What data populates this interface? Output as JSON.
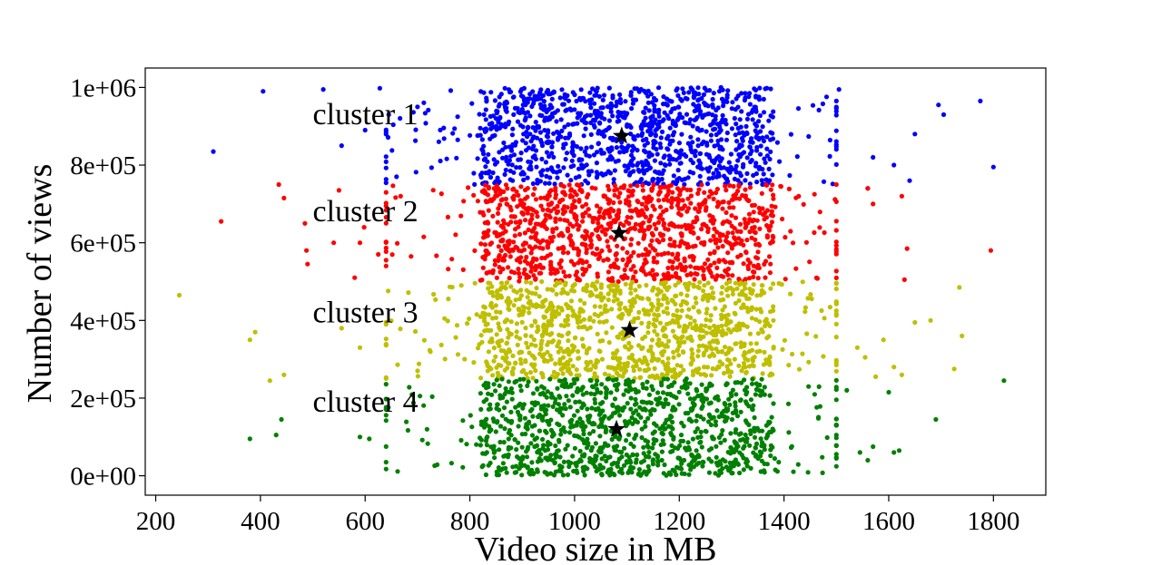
{
  "chart_data": {
    "type": "scatter",
    "title": "",
    "xlabel": "Video size in MB",
    "ylabel": "Number of views",
    "xlim": [
      180,
      1900
    ],
    "ylim": [
      -50000,
      1050000
    ],
    "x_ticks": [
      200,
      400,
      600,
      800,
      1000,
      1200,
      1400,
      1600,
      1800
    ],
    "x_tick_labels": [
      "200",
      "400",
      "600",
      "800",
      "1000",
      "1200",
      "1400",
      "1600",
      "1800"
    ],
    "y_ticks": [
      0,
      200000,
      400000,
      600000,
      800000,
      1000000
    ],
    "y_tick_labels": [
      "0e+00",
      "2e+05",
      "4e+05",
      "6e+05",
      "8e+05",
      "1e+06"
    ],
    "grid": false,
    "legend": "none",
    "colors": {
      "cluster 1": "#0000ff",
      "cluster 2": "#ff0000",
      "cluster 3": "#bfbf00",
      "cluster 4": "#008000",
      "centroid": "#000000"
    },
    "series": [
      {
        "name": "cluster 1",
        "y_range": [
          750000,
          1000000
        ],
        "x_core_range": [
          820,
          1380
        ],
        "approx_point_count": 1100,
        "centroid": [
          1090,
          875000
        ],
        "sample_points": [
          [
            405,
            990000
          ],
          [
            520,
            995000
          ],
          [
            628,
            998000
          ],
          [
            310,
            835000
          ],
          [
            555,
            850000
          ],
          [
            600,
            890000
          ],
          [
            645,
            930000
          ],
          [
            660,
            770000
          ],
          [
            700,
            950000
          ],
          [
            1505,
            995000
          ],
          [
            1570,
            820000
          ],
          [
            1610,
            800000
          ],
          [
            1650,
            880000
          ],
          [
            1695,
            955000
          ],
          [
            1705,
            930000
          ],
          [
            1775,
            965000
          ],
          [
            1800,
            795000
          ],
          [
            1560,
            740000
          ],
          [
            1640,
            760000
          ]
        ]
      },
      {
        "name": "cluster 2",
        "y_range": [
          500000,
          750000
        ],
        "x_core_range": [
          820,
          1380
        ],
        "approx_point_count": 1100,
        "centroid": [
          1085,
          625000
        ],
        "sample_points": [
          [
            325,
            655000
          ],
          [
            435,
            750000
          ],
          [
            445,
            715000
          ],
          [
            485,
            650000
          ],
          [
            488,
            580000
          ],
          [
            490,
            545000
          ],
          [
            540,
            600000
          ],
          [
            550,
            735000
          ],
          [
            590,
            600000
          ],
          [
            598,
            640000
          ],
          [
            625,
            570000
          ],
          [
            580,
            510000
          ],
          [
            1560,
            740000
          ],
          [
            1570,
            700000
          ],
          [
            1625,
            720000
          ],
          [
            1635,
            585000
          ],
          [
            1630,
            505000
          ],
          [
            1795,
            580000
          ]
        ]
      },
      {
        "name": "cluster 3",
        "y_range": [
          250000,
          500000
        ],
        "x_core_range": [
          820,
          1380
        ],
        "approx_point_count": 1100,
        "centroid": [
          1105,
          375000
        ],
        "sample_points": [
          [
            245,
            465000
          ],
          [
            380,
            350000
          ],
          [
            390,
            370000
          ],
          [
            418,
            245000
          ],
          [
            445,
            260000
          ],
          [
            555,
            380000
          ],
          [
            590,
            330000
          ],
          [
            640,
            390000
          ],
          [
            1540,
            330000
          ],
          [
            1555,
            305000
          ],
          [
            1575,
            255000
          ],
          [
            1590,
            350000
          ],
          [
            1610,
            280000
          ],
          [
            1625,
            260000
          ],
          [
            1650,
            395000
          ],
          [
            1680,
            400000
          ],
          [
            1725,
            275000
          ],
          [
            1735,
            485000
          ],
          [
            1740,
            360000
          ]
        ]
      },
      {
        "name": "cluster 4",
        "y_range": [
          0,
          250000
        ],
        "x_core_range": [
          820,
          1380
        ],
        "approx_point_count": 1100,
        "centroid": [
          1080,
          120000
        ],
        "sample_points": [
          [
            380,
            95000
          ],
          [
            430,
            105000
          ],
          [
            440,
            145000
          ],
          [
            590,
            100000
          ],
          [
            608,
            95000
          ],
          [
            640,
            35000
          ],
          [
            1520,
            220000
          ],
          [
            1545,
            60000
          ],
          [
            1560,
            40000
          ],
          [
            1570,
            75000
          ],
          [
            1600,
            215000
          ],
          [
            1610,
            60000
          ],
          [
            1620,
            65000
          ],
          [
            1690,
            145000
          ],
          [
            1820,
            245000
          ]
        ]
      }
    ],
    "annotations": [
      {
        "text": "cluster 1",
        "x": 500,
        "y": 905000
      },
      {
        "text": "cluster 2",
        "x": 500,
        "y": 655000
      },
      {
        "text": "cluster 3",
        "x": 500,
        "y": 395000
      },
      {
        "text": "cluster 4",
        "x": 500,
        "y": 165000
      }
    ]
  }
}
